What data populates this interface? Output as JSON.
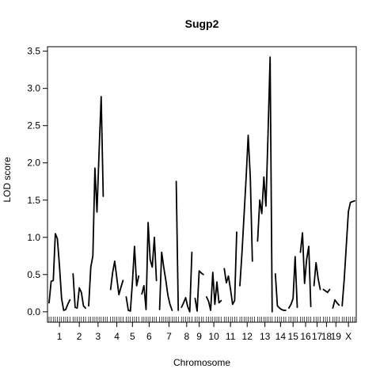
{
  "chart_data": {
    "type": "line",
    "title": "Sugp2",
    "xlabel": "Chromosome",
    "ylabel": "LOD score",
    "ylim": [
      -0.14,
      3.56
    ],
    "y_ticks": [
      0.0,
      0.5,
      1.0,
      1.5,
      2.0,
      2.5,
      3.0,
      3.5
    ],
    "y_tick_labels": [
      "0.0",
      "0.5",
      "1.0",
      "1.5",
      "2.0",
      "2.5",
      "3.0",
      "3.5"
    ],
    "grid": false,
    "legend": "none",
    "chromosomes": [
      {
        "label": "1",
        "pos": [
          0,
          3,
          6,
          9,
          12,
          15,
          18,
          21,
          24,
          27,
          30
        ],
        "lod": [
          0.12,
          0.41,
          0.42,
          1.05,
          0.98,
          0.62,
          0.18,
          0.02,
          0.03,
          0.1,
          0.16
        ]
      },
      {
        "label": "2",
        "pos": [
          0,
          3,
          6,
          9,
          12,
          15,
          18
        ],
        "lod": [
          0.51,
          0.06,
          0.05,
          0.32,
          0.26,
          0.08,
          0.05
        ]
      },
      {
        "label": "3",
        "pos": [
          0,
          3,
          6,
          9,
          12,
          15,
          18,
          21,
          24,
          27
        ],
        "lod": [
          0.08,
          0.6,
          0.75,
          1.93,
          1.34,
          2.16,
          2.89,
          1.55,
          null,
          0.3
        ]
      },
      {
        "label": "4",
        "pos": [
          0,
          3,
          6,
          9,
          12,
          15,
          18
        ],
        "lod": [
          0.3,
          0.53,
          0.68,
          0.45,
          0.23,
          0.33,
          0.42
        ]
      },
      {
        "label": "5",
        "pos": [
          0,
          3,
          6,
          9,
          12,
          15,
          18
        ],
        "lod": [
          0.2,
          0.02,
          0.01,
          0.4,
          0.88,
          0.35,
          0.48
        ]
      },
      {
        "label": "6",
        "pos": [
          0,
          3,
          6,
          9,
          12,
          15,
          18,
          21
        ],
        "lod": [
          0.24,
          0.35,
          0.03,
          1.2,
          0.7,
          0.6,
          1.0,
          0.42
        ]
      },
      {
        "label": "7",
        "pos": [
          0,
          3,
          6,
          9,
          12,
          15,
          18,
          21,
          24,
          27
        ],
        "lod": [
          0.03,
          0.8,
          0.6,
          0.42,
          0.22,
          0.1,
          0.02,
          null,
          1.75,
          0.02
        ]
      },
      {
        "label": "8",
        "pos": [
          0,
          3,
          6,
          9,
          12,
          15
        ],
        "lod": [
          0.06,
          0.12,
          0.19,
          0.07,
          0.0,
          0.8
        ]
      },
      {
        "label": "9",
        "pos": [
          0,
          3,
          6,
          9,
          12
        ],
        "lod": [
          0.18,
          0.01,
          0.55,
          0.52,
          0.5
        ]
      },
      {
        "label": "10",
        "pos": [
          0,
          3,
          6,
          9,
          12,
          15,
          18,
          21
        ],
        "lod": [
          0.2,
          0.14,
          0.02,
          0.53,
          0.1,
          0.4,
          0.12,
          0.15
        ]
      },
      {
        "label": "11",
        "pos": [
          0,
          3,
          6,
          9,
          12,
          15,
          18
        ],
        "lod": [
          0.58,
          0.39,
          0.48,
          0.3,
          0.1,
          0.15,
          1.07
        ]
      },
      {
        "label": "12",
        "pos": [
          0,
          3,
          6,
          9,
          12,
          15,
          18,
          21
        ],
        "lod": [
          0.35,
          0.8,
          1.3,
          1.8,
          2.37,
          1.8,
          0.68,
          null
        ]
      },
      {
        "label": "13",
        "pos": [
          0,
          3,
          6,
          9,
          12,
          15,
          18,
          21
        ],
        "lod": [
          0.95,
          1.5,
          1.32,
          1.81,
          1.42,
          2.4,
          3.42,
          0.0
        ]
      },
      {
        "label": "14",
        "pos": [
          0,
          3,
          6,
          9,
          12,
          15
        ],
        "lod": [
          0.51,
          0.08,
          0.05,
          0.03,
          0.02,
          0.02
        ]
      },
      {
        "label": "15",
        "pos": [
          0,
          3,
          6,
          9,
          12
        ],
        "lod": [
          0.05,
          0.1,
          0.18,
          0.74,
          0.06
        ]
      },
      {
        "label": "16",
        "pos": [
          0,
          3,
          6,
          9,
          12,
          15
        ],
        "lod": [
          0.8,
          1.06,
          0.38,
          0.7,
          0.88,
          0.07
        ]
      },
      {
        "label": "17",
        "pos": [
          0,
          3,
          6,
          9
        ],
        "lod": [
          0.35,
          0.66,
          0.45,
          0.3
        ]
      },
      {
        "label": "18",
        "pos": [
          0,
          3,
          6,
          9
        ],
        "lod": [
          0.3,
          0.28,
          0.26,
          0.3
        ]
      },
      {
        "label": "19",
        "pos": [
          0,
          3,
          6,
          9
        ],
        "lod": [
          0.05,
          0.16,
          0.12,
          0.09
        ]
      },
      {
        "label": "X",
        "pos": [
          0,
          3,
          6,
          9,
          12,
          15,
          18
        ],
        "lod": [
          0.08,
          0.45,
          0.9,
          1.35,
          1.47,
          1.48,
          1.49
        ]
      }
    ]
  }
}
